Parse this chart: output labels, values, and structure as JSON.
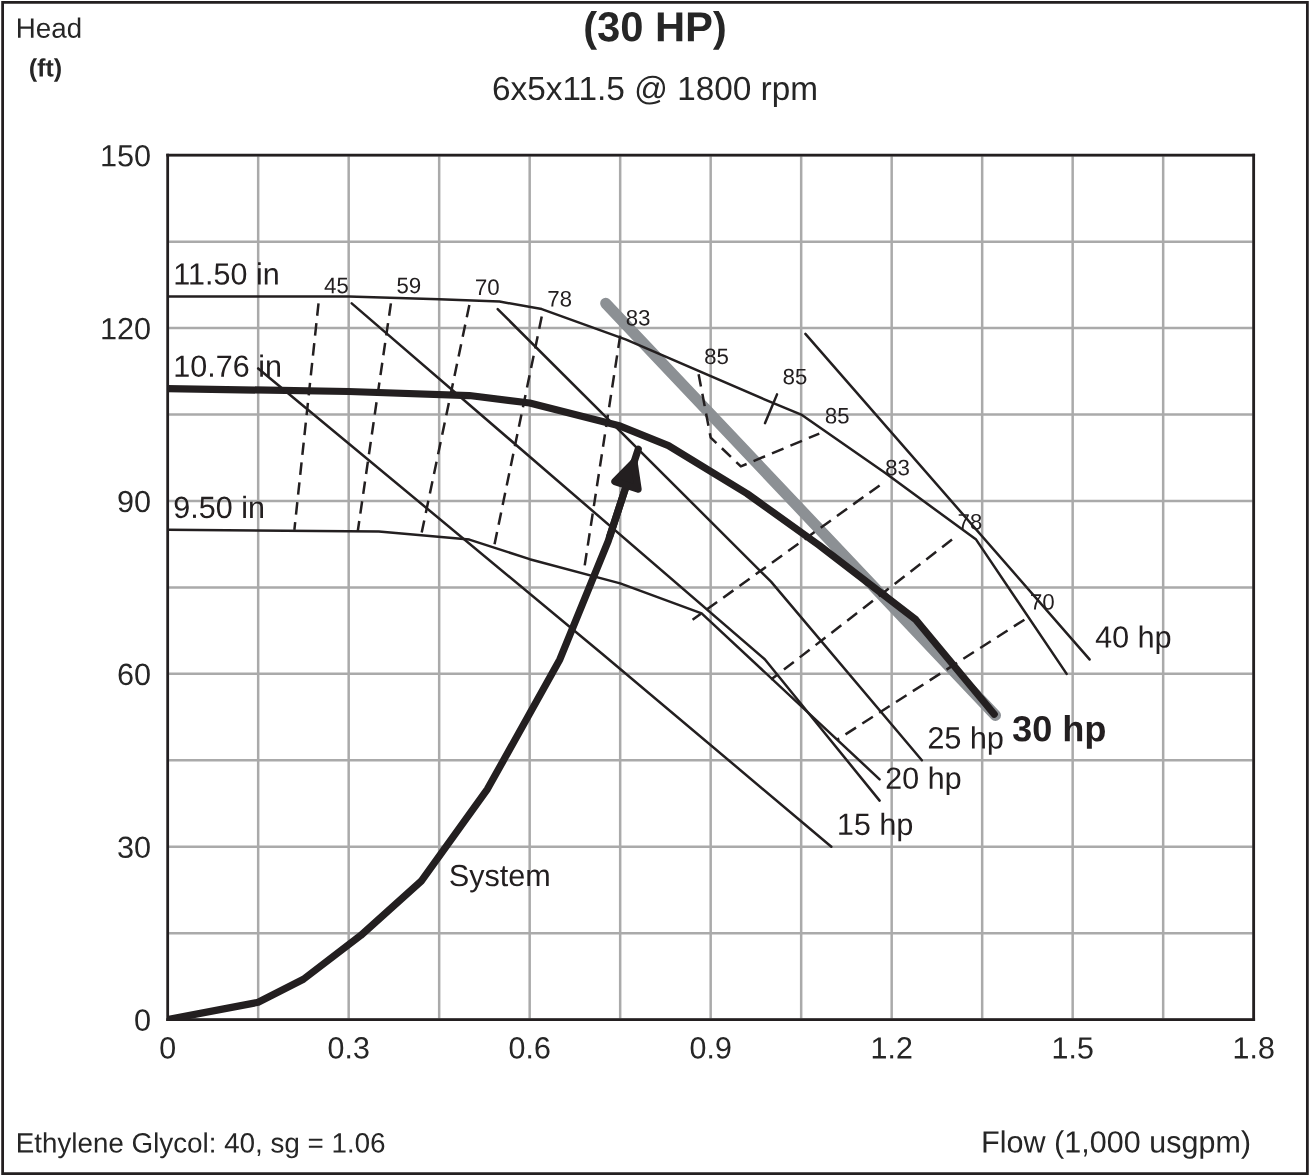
{
  "chart_data": {
    "type": "line",
    "title": "(30 HP)",
    "subtitle": "6x5x11.5 @ 1800 rpm",
    "xlabel": "Flow (1,000 usgpm)",
    "ylabel": "Head",
    "xlim": [
      0,
      1.8
    ],
    "ylim": [
      0,
      150
    ],
    "xticks": [
      0,
      {
        "value": 0.15,
        "label": null
      },
      0.3,
      {
        "value": 0.45,
        "label": null
      },
      0.6,
      {
        "value": 0.75,
        "label": null
      },
      0.9,
      {
        "value": 1.05,
        "label": null
      },
      1.2,
      {
        "value": 1.35,
        "label": null
      },
      1.5,
      {
        "value": 1.65,
        "label": null
      },
      1.8
    ],
    "yticks": [
      0,
      {
        "value": 15,
        "label": null
      },
      30,
      {
        "value": 45,
        "label": null
      },
      60,
      {
        "value": 75,
        "label": null
      },
      90,
      {
        "value": 105,
        "label": null
      },
      120,
      {
        "value": 135,
        "label": null
      },
      150
    ],
    "grid": true,
    "legend": false,
    "marker": "none",
    "series": [
      {
        "color": "#231f20",
        "x": [
          0,
          0.3,
          0.45,
          0.55,
          0.62,
          0.76,
          0.99,
          1.05,
          1.19,
          1.34,
          1.49
        ],
        "values": [
          125.5,
          125.5,
          125,
          124.6,
          123.3,
          118,
          107.6,
          105,
          94.8,
          83.3,
          60
        ]
      },
      {
        "color": "#231f20",
        "x": [
          0,
          0.3,
          0.5,
          0.6,
          0.75,
          0.83,
          0.96,
          1.08,
          1.24,
          1.37
        ],
        "values": [
          109.5,
          109,
          108.3,
          107,
          103,
          99.6,
          91.3,
          82.3,
          69.4,
          53
        ]
      },
      {
        "color": "#231f20",
        "x": [
          0,
          0.35,
          0.5,
          0.6,
          0.75,
          0.885,
          1.18
        ],
        "values": [
          85,
          84.7,
          83.3,
          79.9,
          75.7,
          70.5,
          41.7
        ]
      },
      {
        "color": "#231f20",
        "x": [
          0.15,
          0.72,
          1.1
        ],
        "values": [
          113,
          63.5,
          30
        ]
      },
      {
        "color": "#231f20",
        "x": [
          0.305,
          0.99,
          1.18
        ],
        "values": [
          124.3,
          62.5,
          38
        ]
      },
      {
        "color": "#231f20",
        "x": [
          0.547,
          1.0,
          1.25
        ],
        "values": [
          123.3,
          76,
          45
        ]
      },
      {
        "color": "#231f20",
        "x": [
          1.057,
          1.528
        ],
        "values": [
          119,
          62.5
        ]
      },
      {
        "color": "#231f20",
        "line_style": "dashed",
        "x": [
          0.25,
          0.21
        ],
        "values": [
          124.3,
          85
        ]
      },
      {
        "color": "#231f20",
        "line_style": "dashed",
        "x": [
          0.37,
          0.315
        ],
        "values": [
          124.3,
          84.7
        ]
      },
      {
        "color": "#231f20",
        "line_style": "dashed",
        "x": [
          0.5,
          0.42
        ],
        "values": [
          124,
          84
        ]
      },
      {
        "color": "#231f20",
        "line_style": "dashed",
        "x": [
          0.62,
          0.54
        ],
        "values": [
          122,
          81.6
        ]
      },
      {
        "color": "#231f20",
        "line_style": "dashed",
        "x": [
          0.75,
          0.69
        ],
        "values": [
          118.7,
          78
        ]
      },
      {
        "color": "#231f20",
        "line_style": "dashed",
        "x": [
          0.88,
          0.9,
          0.95,
          1.08
        ],
        "values": [
          112,
          101,
          96,
          101.7
        ]
      },
      {
        "color": "#231f20",
        "line_style": "dashed",
        "x": [
          1.18,
          0.87
        ],
        "values": [
          92.7,
          69.4
        ]
      },
      {
        "color": "#231f20",
        "line_style": "dashed",
        "x": [
          1.3,
          1.0
        ],
        "values": [
          83.3,
          59
        ]
      },
      {
        "color": "#231f20",
        "line_style": "dashed",
        "x": [
          1.42,
          1.11
        ],
        "values": [
          69.4,
          48.6
        ]
      },
      {
        "color": "#231f20",
        "x": [
          0.99,
          1.01
        ],
        "values": [
          103.5,
          108.5
        ]
      },
      {
        "color": "#231f20",
        "x": [
          0,
          0.15,
          0.225,
          0.32,
          0.42,
          0.53,
          0.65,
          0.73,
          0.78
        ],
        "values": [
          0,
          3,
          7,
          14.6,
          24,
          40,
          62.5,
          83,
          99
        ]
      },
      {
        "color": "#8c9094",
        "x": [
          0.726,
          1.372
        ],
        "values": [
          124.3,
          52.8
        ]
      }
    ],
    "annotations": [
      {
        "text": "11.50 in",
        "x": 0,
        "y": 125.5
      },
      {
        "text": "10.76 in",
        "x": 0,
        "y": 109.5
      },
      {
        "text": "9.50 in",
        "x": 0,
        "y": 85
      },
      {
        "text": "45",
        "x": 0.25,
        "y": 124.3
      },
      {
        "text": "59",
        "x": 0.37,
        "y": 124.3
      },
      {
        "text": "70",
        "x": 0.5,
        "y": 124
      },
      {
        "text": "78",
        "x": 0.62,
        "y": 122
      },
      {
        "text": "83",
        "x": 0.75,
        "y": 118.7
      },
      {
        "text": "85",
        "x": 0.88,
        "y": 112
      },
      {
        "text": "85",
        "x": 1.01,
        "y": 108.5
      },
      {
        "text": "85",
        "x": 1.08,
        "y": 101.7
      },
      {
        "text": "83",
        "x": 1.18,
        "y": 92.7
      },
      {
        "text": "78",
        "x": 1.3,
        "y": 83.3
      },
      {
        "text": "70",
        "x": 1.42,
        "y": 69.4
      },
      {
        "text": "15 hp",
        "x": 1.1,
        "y": 30
      },
      {
        "text": "20 hp",
        "x": 1.18,
        "y": 38
      },
      {
        "text": "25 hp",
        "x": 1.25,
        "y": 45
      },
      {
        "text": "30 hp",
        "x": 1.372,
        "y": 52.8
      },
      {
        "text": "40 hp",
        "x": 1.528,
        "y": 62.5
      },
      {
        "text": "System",
        "x": 0.42,
        "y": 24
      },
      "(ft)",
      "Ethylene Glycol: 40, sg = 1.06"
    ]
  }
}
